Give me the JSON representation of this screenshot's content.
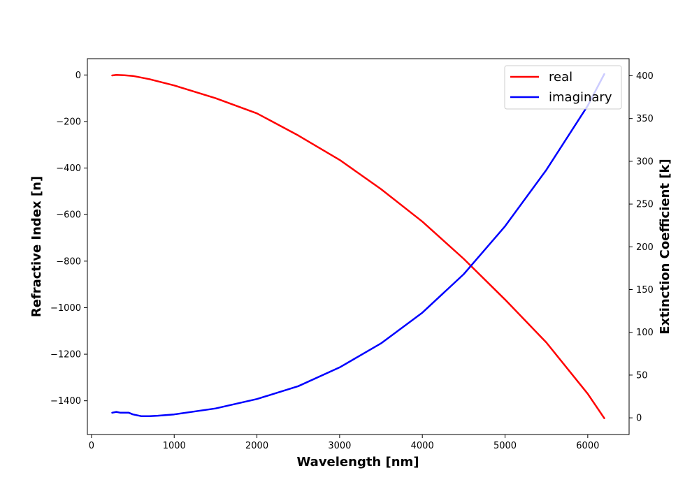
{
  "chart_data": {
    "type": "line",
    "xlabel": "Wavelength [nm]",
    "ylabel": "Refractive Index [n]",
    "y2label": "Extinction Coefficient [k]",
    "xlim": [
      -50,
      6500
    ],
    "ylim": [
      -1545,
      70
    ],
    "y2lim": [
      -19.5,
      420
    ],
    "x_ticks": [
      0,
      1000,
      2000,
      3000,
      4000,
      5000,
      6000
    ],
    "y_ticks": [
      0,
      -200,
      -400,
      -600,
      -800,
      -1000,
      -1200,
      -1400
    ],
    "y2_ticks": [
      0,
      50,
      100,
      150,
      200,
      250,
      300,
      350,
      400
    ],
    "grid": false,
    "legend_position": "top-right",
    "series": [
      {
        "name": "real",
        "axis": "left",
        "color": "#ff0000",
        "x": [
          250,
          300,
          400,
          500,
          700,
          1000,
          1500,
          2000,
          2500,
          3000,
          3500,
          4000,
          4500,
          5000,
          5500,
          6000,
          6200
        ],
        "values": [
          -2,
          0,
          -1,
          -4,
          -18,
          -45,
          -100,
          -165,
          -260,
          -365,
          -490,
          -630,
          -790,
          -965,
          -1150,
          -1370,
          -1475
        ]
      },
      {
        "name": "imaginary",
        "axis": "right",
        "color": "#0000ff",
        "x": [
          250,
          300,
          350,
          450,
          500,
          600,
          700,
          800,
          1000,
          1500,
          2000,
          2500,
          3000,
          3500,
          4000,
          4500,
          5000,
          5500,
          6000,
          6200
        ],
        "values": [
          6,
          7,
          6,
          6,
          4,
          2,
          2,
          2.5,
          4,
          11,
          22,
          37,
          59,
          87,
          123,
          168,
          224,
          290,
          365,
          402
        ]
      }
    ]
  }
}
